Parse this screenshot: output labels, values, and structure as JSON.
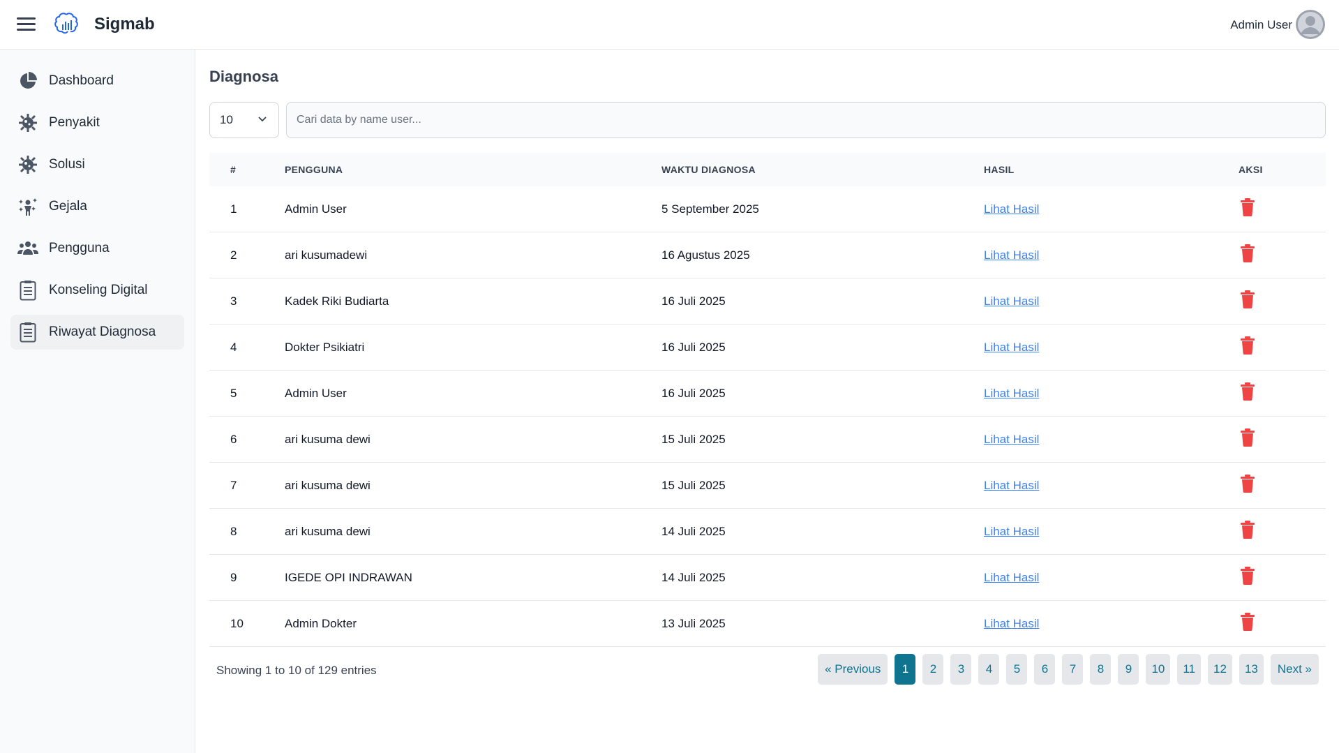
{
  "header": {
    "brand": "Sigmab",
    "user_name": "Admin User"
  },
  "sidebar": {
    "items": [
      {
        "label": "Dashboard",
        "icon": "pie-chart-icon"
      },
      {
        "label": "Penyakit",
        "icon": "virus-icon"
      },
      {
        "label": "Solusi",
        "icon": "virus-icon"
      },
      {
        "label": "Gejala",
        "icon": "person-sparkle-icon"
      },
      {
        "label": "Pengguna",
        "icon": "users-icon"
      },
      {
        "label": "Konseling Digital",
        "icon": "clipboard-icon"
      },
      {
        "label": "Riwayat Diagnosa",
        "icon": "clipboard-icon",
        "active": true
      }
    ]
  },
  "main": {
    "title": "Diagnosa",
    "per_page": "10",
    "search_placeholder": "Cari data by name user...",
    "columns": [
      "#",
      "PENGGUNA",
      "WAKTU DIAGNOSA",
      "HASIL",
      "AKSI"
    ],
    "rows": [
      {
        "no": "1",
        "user": "Admin User",
        "time": "5 September 2025",
        "result": "Lihat Hasil"
      },
      {
        "no": "2",
        "user": "ari kusumadewi",
        "time": "16 Agustus 2025",
        "result": "Lihat Hasil"
      },
      {
        "no": "3",
        "user": "Kadek Riki Budiarta",
        "time": "16 Juli 2025",
        "result": "Lihat Hasil"
      },
      {
        "no": "4",
        "user": "Dokter Psikiatri",
        "time": "16 Juli 2025",
        "result": "Lihat Hasil"
      },
      {
        "no": "5",
        "user": "Admin User",
        "time": "16 Juli 2025",
        "result": "Lihat Hasil"
      },
      {
        "no": "6",
        "user": "ari kusuma dewi",
        "time": "15 Juli 2025",
        "result": "Lihat Hasil"
      },
      {
        "no": "7",
        "user": "ari kusuma dewi",
        "time": "15 Juli 2025",
        "result": "Lihat Hasil"
      },
      {
        "no": "8",
        "user": "ari kusuma dewi",
        "time": "14 Juli 2025",
        "result": "Lihat Hasil"
      },
      {
        "no": "9",
        "user": "IGEDE OPI INDRAWAN",
        "time": "14 Juli 2025",
        "result": "Lihat Hasil"
      },
      {
        "no": "10",
        "user": "Admin Dokter",
        "time": "13 Juli 2025",
        "result": "Lihat Hasil"
      }
    ],
    "footer_info": "Showing 1 to 10 of 129 entries",
    "pagination": {
      "previous": "« Previous",
      "next": "Next »",
      "pages": [
        "1",
        "2",
        "3",
        "4",
        "5",
        "6",
        "7",
        "8",
        "9",
        "10",
        "11",
        "12",
        "13"
      ],
      "current": "1"
    }
  },
  "colors": {
    "accent": "#0e7490",
    "link": "#3b82f6",
    "danger": "#ef4444"
  }
}
